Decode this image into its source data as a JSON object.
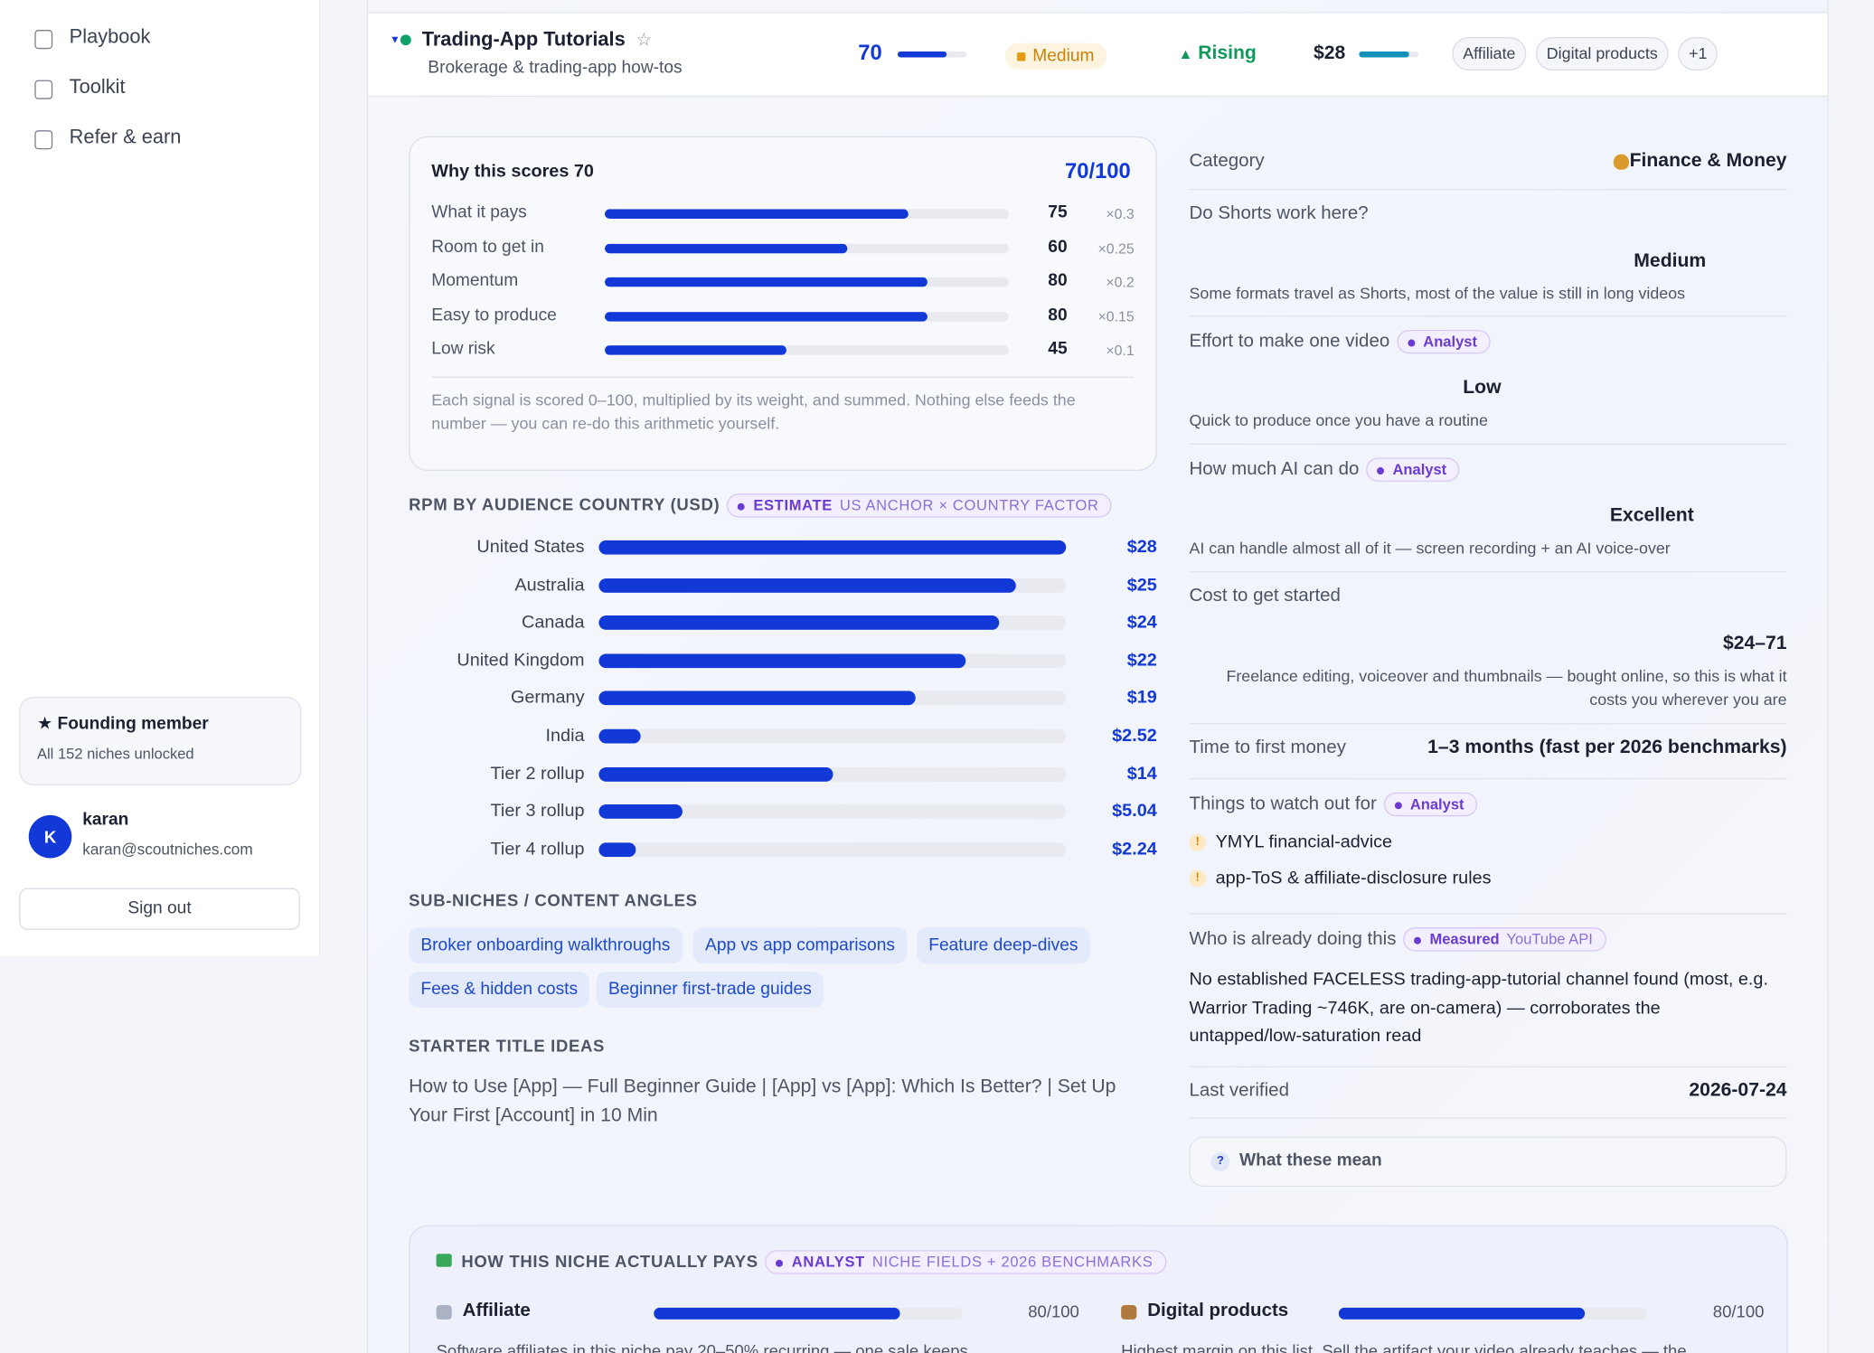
{
  "sidebar": {
    "nav": [
      "Playbook",
      "Toolkit",
      "Refer & earn"
    ],
    "member": {
      "title": "★ Founding member",
      "subtitle": "All 152 niches unlocked"
    },
    "user": {
      "initial": "K",
      "name": "karan",
      "email": "karan@scoutniches.com"
    },
    "sign_out": "Sign out"
  },
  "niche": {
    "name": "Trading-App Tutorials",
    "subtitle": "Brokerage & trading-app how-tos",
    "score": 70,
    "competition": "Medium",
    "trend": "Rising",
    "rpm": "$28",
    "tags": [
      "Affiliate",
      "Digital products",
      "+1"
    ]
  },
  "score": {
    "title": "Why this scores 70",
    "total": "70/100",
    "max": 100,
    "signals": [
      {
        "name": "What it pays",
        "value": 75,
        "weight": "×0.3"
      },
      {
        "name": "Room to get in",
        "value": 60,
        "weight": "×0.25"
      },
      {
        "name": "Momentum",
        "value": 80,
        "weight": "×0.2"
      },
      {
        "name": "Easy to produce",
        "value": 80,
        "weight": "×0.15"
      },
      {
        "name": "Low risk",
        "value": 45,
        "weight": "×0.1"
      }
    ],
    "note": "Each signal is scored 0–100, multiplied by its weight, and summed. Nothing else feeds the number — you can re-do this arithmetic yourself."
  },
  "rpm": {
    "title": "RPM BY AUDIENCE COUNTRY (USD)",
    "badge": {
      "kind": "ESTIMATE",
      "source": "US ANCHOR × COUNTRY FACTOR"
    },
    "countries": [
      {
        "name": "United States",
        "value": 28,
        "label": "$28"
      },
      {
        "name": "Australia",
        "value": 25,
        "label": "$25"
      },
      {
        "name": "Canada",
        "value": 24,
        "label": "$24"
      },
      {
        "name": "United Kingdom",
        "value": 22,
        "label": "$22"
      },
      {
        "name": "Germany",
        "value": 19,
        "label": "$19"
      },
      {
        "name": "India",
        "value": 2.52,
        "label": "$2.52"
      },
      {
        "name": "Tier 2 rollup",
        "value": 14,
        "label": "$14"
      },
      {
        "name": "Tier 3 rollup",
        "value": 5.04,
        "label": "$5.04"
      },
      {
        "name": "Tier 4 rollup",
        "value": 2.24,
        "label": "$2.24"
      }
    ]
  },
  "sub_niches": {
    "title": "SUB-NICHES / CONTENT ANGLES",
    "items": [
      "Broker onboarding walkthroughs",
      "App vs app comparisons",
      "Feature deep-dives",
      "Fees & hidden costs",
      "Beginner first-trade guides"
    ]
  },
  "titles": {
    "title": "STARTER TITLE IDEAS",
    "text": "How to Use [App] — Full Beginner Guide | [App] vs [App]: Which Is Better? | Set Up Your First [Account] in 10 Min"
  },
  "details": [
    {
      "label": "Category",
      "value": "Finance & Money"
    },
    {
      "label": "Do Shorts work here?",
      "value": "Medium",
      "description": "Some formats travel as Shorts, most of the value is still in long videos"
    },
    {
      "label": "Effort to make one video",
      "badge": "Analyst",
      "value": "Low",
      "description": "Quick to produce once you have a routine"
    },
    {
      "label": "How much AI can do",
      "badge": "Analyst",
      "value": "Excellent",
      "description": "AI can handle almost all of it — screen recording + an AI voice-over"
    },
    {
      "label": "Cost to get started",
      "value": "$24–71",
      "description": "Freelance editing, voiceover and thumbnails — bought online, so this is what it costs you wherever you are"
    },
    {
      "label": "Time to first money",
      "value": "1–3 months (fast per 2026 benchmarks)"
    },
    {
      "label": "Things to watch out for",
      "badge": "Analyst",
      "items": [
        "YMYL financial-advice",
        "app-ToS & affiliate-disclosure rules"
      ]
    },
    {
      "label": "Who is already doing this",
      "badge": "Measured",
      "source": "YouTube API",
      "text": "No established FACELESS trading-app-tutorial channel found (most, e.g. Warrior Trading ~746K, are on-camera) — corroborates the untapped/low-saturation read"
    },
    {
      "label": "Last verified",
      "value": "2026-07-24"
    }
  ],
  "help": "What these mean",
  "pays": {
    "title": "HOW THIS NICHE ACTUALLY PAYS",
    "badge": {
      "kind": "ANALYST",
      "source": "NICHE FIELDS + 2026 BENCHMARKS"
    },
    "models": [
      {
        "name": "Affiliate",
        "value": 80,
        "label": "80/100",
        "text": "Software affiliates in this niche pay 20–50% recurring — one sale keeps"
      },
      {
        "name": "Digital products",
        "value": 80,
        "label": "80/100",
        "text": "Highest margin on this list. Sell the artifact your video already teaches — the"
      }
    ]
  }
}
